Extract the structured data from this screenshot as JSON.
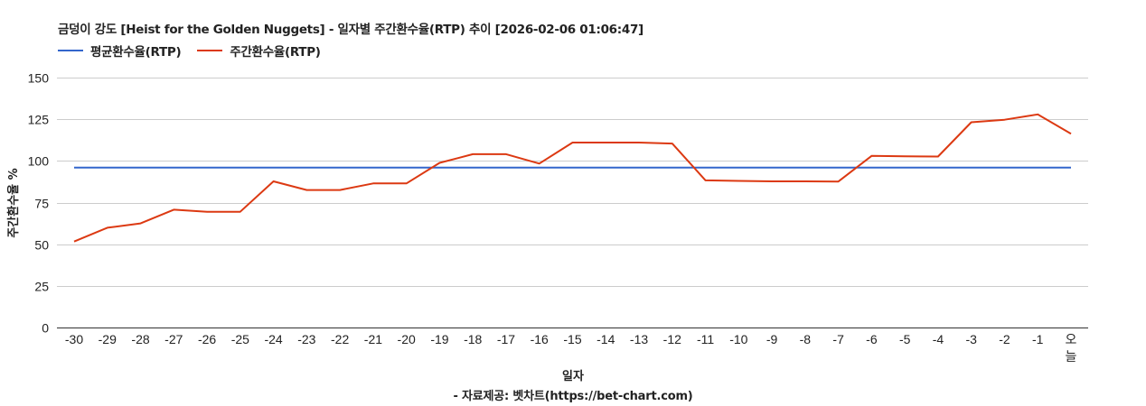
{
  "header": {
    "title": "금덩이 강도 [Heist for the Golden Nuggets] - 일자별 주간환수율(RTP) 추이 [2026-02-06 01:06:47]"
  },
  "legend": [
    {
      "label": "평균환수율(RTP)",
      "color": "#3366cc"
    },
    {
      "label": "주간환수율(RTP)",
      "color": "#dc3912"
    }
  ],
  "axes": {
    "ylabel": "주간환수율 %",
    "xlabel": "일자",
    "source": "- 자료제공: 벳차트(https://bet-chart.com)"
  },
  "chart_data": {
    "type": "line",
    "title": "금덩이 강도 [Heist for the Golden Nuggets] - 일자별 주간환수율(RTP) 추이 [2026-02-06 01:06:47]",
    "xlabel": "일자",
    "ylabel": "주간환수율 %",
    "ylim": [
      0,
      150
    ],
    "yticks": [
      0,
      25,
      50,
      75,
      100,
      125,
      150
    ],
    "grid": true,
    "legend_position": "top",
    "categories": [
      "-30",
      "-29",
      "-28",
      "-27",
      "-26",
      "-25",
      "-24",
      "-23",
      "-22",
      "-21",
      "-20",
      "-19",
      "-18",
      "-17",
      "-16",
      "-15",
      "-14",
      "-13",
      "-12",
      "-11",
      "-10",
      "-9",
      "-8",
      "-7",
      "-6",
      "-5",
      "-4",
      "-3",
      "-2",
      "-1",
      "오늘"
    ],
    "series": [
      {
        "name": "평균환수율(RTP)",
        "color": "#3366cc",
        "values": [
          96,
          96,
          96,
          96,
          96,
          96,
          96,
          96,
          96,
          96,
          96,
          96,
          96,
          96,
          96,
          96,
          96,
          96,
          96,
          96,
          96,
          96,
          96,
          96,
          96,
          96,
          96,
          96,
          96,
          96,
          96
        ]
      },
      {
        "name": "주간환수율(RTP)",
        "color": "#dc3912",
        "values": [
          51.6,
          59.9,
          62.5,
          70.7,
          69.5,
          69.5,
          87.7,
          82.5,
          82.5,
          86.5,
          86.5,
          98.8,
          104,
          104,
          98.4,
          111,
          111,
          111,
          110.4,
          88.3,
          88,
          87.7,
          87.7,
          87.6,
          103,
          102.7,
          102.6,
          123.2,
          124.7,
          127.9,
          116.3
        ]
      }
    ]
  },
  "footer": {
    "source": "- 자료제공: 벳차트(https://bet-chart.com)"
  }
}
